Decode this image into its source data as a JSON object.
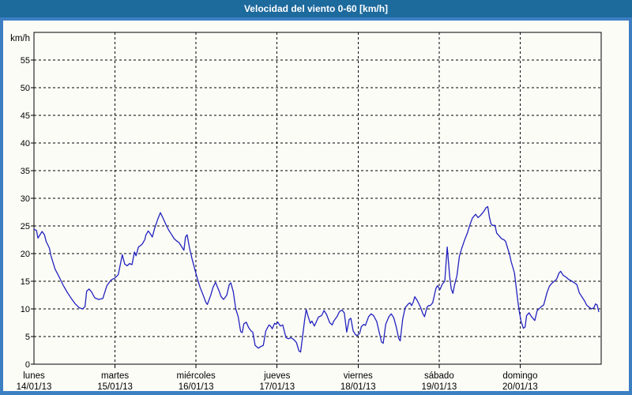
{
  "window": {
    "title": "Velocidad del viento 0-60 [km/h]"
  },
  "colors": {
    "titlebar_bg": "#1d6a9d",
    "titlebar_text": "#ffffff",
    "frame": "#3b7ec2",
    "panel_bg": "#fcfcf7",
    "plot_border": "#000000",
    "grid": "#000000",
    "line": "#2222bf",
    "label_text": "#000000"
  },
  "chart_data": {
    "type": "line",
    "title": "Velocidad del viento 0-60 [km/h]",
    "ylabel": "km/h",
    "xlabel": "",
    "ylim": [
      0,
      60
    ],
    "yticks": [
      0,
      5,
      10,
      15,
      20,
      25,
      30,
      35,
      40,
      45,
      50,
      55
    ],
    "grid": "dashed",
    "legend": "none",
    "x_span_days": 7,
    "categories": [
      "lunes",
      "martes",
      "miércoles",
      "jueves",
      "viernes",
      "sábado",
      "domingo"
    ],
    "dates": [
      "14/01/13",
      "15/01/13",
      "16/01/13",
      "17/01/13",
      "18/01/13",
      "19/01/13",
      "20/01/13"
    ],
    "series": [
      {
        "name": "Velocidad del viento",
        "color": "#2222bf",
        "x_unit": "days since 14/01/13 00:00",
        "y_unit": "km/h",
        "points": [
          [
            0.0,
            24.4
          ],
          [
            0.03,
            24.2
          ],
          [
            0.05,
            22.8
          ],
          [
            0.07,
            23.3
          ],
          [
            0.1,
            24.0
          ],
          [
            0.13,
            23.4
          ],
          [
            0.15,
            22.2
          ],
          [
            0.19,
            21.0
          ],
          [
            0.21,
            19.6
          ],
          [
            0.26,
            17.2
          ],
          [
            0.31,
            15.8
          ],
          [
            0.36,
            14.3
          ],
          [
            0.41,
            13.0
          ],
          [
            0.46,
            11.9
          ],
          [
            0.51,
            10.9
          ],
          [
            0.56,
            10.2
          ],
          [
            0.6,
            10.0
          ],
          [
            0.63,
            10.4
          ],
          [
            0.65,
            13.2
          ],
          [
            0.68,
            13.6
          ],
          [
            0.71,
            13.1
          ],
          [
            0.75,
            12.0
          ],
          [
            0.8,
            11.7
          ],
          [
            0.85,
            11.9
          ],
          [
            0.9,
            14.2
          ],
          [
            0.95,
            15.2
          ],
          [
            1.0,
            15.6
          ],
          [
            1.04,
            16.2
          ],
          [
            1.09,
            19.8
          ],
          [
            1.12,
            18.1
          ],
          [
            1.15,
            17.8
          ],
          [
            1.18,
            18.2
          ],
          [
            1.21,
            18.0
          ],
          [
            1.24,
            20.3
          ],
          [
            1.26,
            19.6
          ],
          [
            1.29,
            21.2
          ],
          [
            1.32,
            21.5
          ],
          [
            1.34,
            21.8
          ],
          [
            1.37,
            22.6
          ],
          [
            1.38,
            23.3
          ],
          [
            1.41,
            24.1
          ],
          [
            1.44,
            23.5
          ],
          [
            1.46,
            23.0
          ],
          [
            1.49,
            24.6
          ],
          [
            1.53,
            26.3
          ],
          [
            1.56,
            27.4
          ],
          [
            1.59,
            26.5
          ],
          [
            1.63,
            25.2
          ],
          [
            1.66,
            24.3
          ],
          [
            1.7,
            23.4
          ],
          [
            1.73,
            22.7
          ],
          [
            1.76,
            22.3
          ],
          [
            1.79,
            22.0
          ],
          [
            1.82,
            21.3
          ],
          [
            1.85,
            20.6
          ],
          [
            1.87,
            23.0
          ],
          [
            1.89,
            23.4
          ],
          [
            1.92,
            21.0
          ],
          [
            1.95,
            19.1
          ],
          [
            1.99,
            16.9
          ],
          [
            2.02,
            15.3
          ],
          [
            2.05,
            13.9
          ],
          [
            2.09,
            12.4
          ],
          [
            2.12,
            11.2
          ],
          [
            2.14,
            10.8
          ],
          [
            2.18,
            12.4
          ],
          [
            2.21,
            13.9
          ],
          [
            2.24,
            14.8
          ],
          [
            2.28,
            13.4
          ],
          [
            2.31,
            12.2
          ],
          [
            2.34,
            11.7
          ],
          [
            2.38,
            12.5
          ],
          [
            2.41,
            14.4
          ],
          [
            2.43,
            14.7
          ],
          [
            2.46,
            13.1
          ],
          [
            2.49,
            10.0
          ],
          [
            2.52,
            8.6
          ],
          [
            2.55,
            5.9
          ],
          [
            2.57,
            5.7
          ],
          [
            2.59,
            7.3
          ],
          [
            2.62,
            7.6
          ],
          [
            2.65,
            6.6
          ],
          [
            2.68,
            6.0
          ],
          [
            2.7,
            5.8
          ],
          [
            2.73,
            3.4
          ],
          [
            2.77,
            2.9
          ],
          [
            2.8,
            3.2
          ],
          [
            2.83,
            3.4
          ],
          [
            2.86,
            6.0
          ],
          [
            2.9,
            7.1
          ],
          [
            2.92,
            6.9
          ],
          [
            2.94,
            6.4
          ],
          [
            2.97,
            7.4
          ],
          [
            2.99,
            7.2
          ],
          [
            3.01,
            7.6
          ],
          [
            3.04,
            6.9
          ],
          [
            3.07,
            7.1
          ],
          [
            3.11,
            4.8
          ],
          [
            3.14,
            4.6
          ],
          [
            3.17,
            4.8
          ],
          [
            3.21,
            4.4
          ],
          [
            3.24,
            3.9
          ],
          [
            3.27,
            2.4
          ],
          [
            3.29,
            2.2
          ],
          [
            3.31,
            4.4
          ],
          [
            3.34,
            8.0
          ],
          [
            3.36,
            9.9
          ],
          [
            3.38,
            8.8
          ],
          [
            3.41,
            7.4
          ],
          [
            3.43,
            7.8
          ],
          [
            3.46,
            6.9
          ],
          [
            3.48,
            7.5
          ],
          [
            3.51,
            8.5
          ],
          [
            3.55,
            8.8
          ],
          [
            3.58,
            9.7
          ],
          [
            3.61,
            9.0
          ],
          [
            3.65,
            7.5
          ],
          [
            3.68,
            7.1
          ],
          [
            3.7,
            7.8
          ],
          [
            3.74,
            8.6
          ],
          [
            3.77,
            9.5
          ],
          [
            3.8,
            9.8
          ],
          [
            3.83,
            9.3
          ],
          [
            3.86,
            5.8
          ],
          [
            3.89,
            8.1
          ],
          [
            3.91,
            8.3
          ],
          [
            3.94,
            6.0
          ],
          [
            3.97,
            5.3
          ],
          [
            3.99,
            5.2
          ],
          [
            4.02,
            5.6
          ],
          [
            4.04,
            6.8
          ],
          [
            4.07,
            7.2
          ],
          [
            4.09,
            7.0
          ],
          [
            4.13,
            8.6
          ],
          [
            4.16,
            9.1
          ],
          [
            4.19,
            8.8
          ],
          [
            4.23,
            7.7
          ],
          [
            4.26,
            5.8
          ],
          [
            4.29,
            4.0
          ],
          [
            4.31,
            3.8
          ],
          [
            4.34,
            7.2
          ],
          [
            4.38,
            8.6
          ],
          [
            4.41,
            9.1
          ],
          [
            4.44,
            8.4
          ],
          [
            4.47,
            6.8
          ],
          [
            4.5,
            4.7
          ],
          [
            4.52,
            4.2
          ],
          [
            4.55,
            8.1
          ],
          [
            4.58,
            10.2
          ],
          [
            4.62,
            10.9
          ],
          [
            4.64,
            11.1
          ],
          [
            4.66,
            10.6
          ],
          [
            4.68,
            11.2
          ],
          [
            4.7,
            12.2
          ],
          [
            4.73,
            11.5
          ],
          [
            4.77,
            10.3
          ],
          [
            4.8,
            9.1
          ],
          [
            4.82,
            8.6
          ],
          [
            4.85,
            10.3
          ],
          [
            4.87,
            10.6
          ],
          [
            4.89,
            10.6
          ],
          [
            4.92,
            11.1
          ],
          [
            4.96,
            13.7
          ],
          [
            4.98,
            14.2
          ],
          [
            5.01,
            13.5
          ],
          [
            5.04,
            14.5
          ],
          [
            5.07,
            15.0
          ],
          [
            5.1,
            21.2
          ],
          [
            5.13,
            15.9
          ],
          [
            5.15,
            13.6
          ],
          [
            5.17,
            12.8
          ],
          [
            5.19,
            14.3
          ],
          [
            5.22,
            16.0
          ],
          [
            5.25,
            19.5
          ],
          [
            5.28,
            21.0
          ],
          [
            5.31,
            22.3
          ],
          [
            5.35,
            23.8
          ],
          [
            5.38,
            25.2
          ],
          [
            5.41,
            26.4
          ],
          [
            5.45,
            27.1
          ],
          [
            5.48,
            26.5
          ],
          [
            5.51,
            26.9
          ],
          [
            5.55,
            27.6
          ],
          [
            5.58,
            28.3
          ],
          [
            5.6,
            28.5
          ],
          [
            5.62,
            26.6
          ],
          [
            5.64,
            25.4
          ],
          [
            5.66,
            25.1
          ],
          [
            5.69,
            25.1
          ],
          [
            5.71,
            23.7
          ],
          [
            5.74,
            23.2
          ],
          [
            5.77,
            22.7
          ],
          [
            5.8,
            22.5
          ],
          [
            5.82,
            22.2
          ],
          [
            5.85,
            20.8
          ],
          [
            5.87,
            19.8
          ],
          [
            5.89,
            18.5
          ],
          [
            5.91,
            17.5
          ],
          [
            5.93,
            16.5
          ],
          [
            5.95,
            14.0
          ],
          [
            5.97,
            11.5
          ],
          [
            5.99,
            9.5
          ],
          [
            6.01,
            7.8
          ],
          [
            6.04,
            6.5
          ],
          [
            6.06,
            6.7
          ],
          [
            6.08,
            8.8
          ],
          [
            6.11,
            9.3
          ],
          [
            6.14,
            8.6
          ],
          [
            6.18,
            7.9
          ],
          [
            6.21,
            9.7
          ],
          [
            6.24,
            10.1
          ],
          [
            6.26,
            10.4
          ],
          [
            6.29,
            10.7
          ],
          [
            6.33,
            12.9
          ],
          [
            6.36,
            14.1
          ],
          [
            6.39,
            14.6
          ],
          [
            6.43,
            15.1
          ],
          [
            6.45,
            15.4
          ],
          [
            6.48,
            16.5
          ],
          [
            6.5,
            16.8
          ],
          [
            6.53,
            16.1
          ],
          [
            6.57,
            15.7
          ],
          [
            6.6,
            15.3
          ],
          [
            6.63,
            15.1
          ],
          [
            6.67,
            14.7
          ],
          [
            6.7,
            14.4
          ],
          [
            6.73,
            12.9
          ],
          [
            6.77,
            12.0
          ],
          [
            6.8,
            11.3
          ],
          [
            6.82,
            10.7
          ],
          [
            6.86,
            10.2
          ],
          [
            6.88,
            10.0
          ],
          [
            6.91,
            10.2
          ],
          [
            6.93,
            10.9
          ],
          [
            6.95,
            10.7
          ],
          [
            6.97,
            9.5
          ]
        ]
      }
    ]
  }
}
